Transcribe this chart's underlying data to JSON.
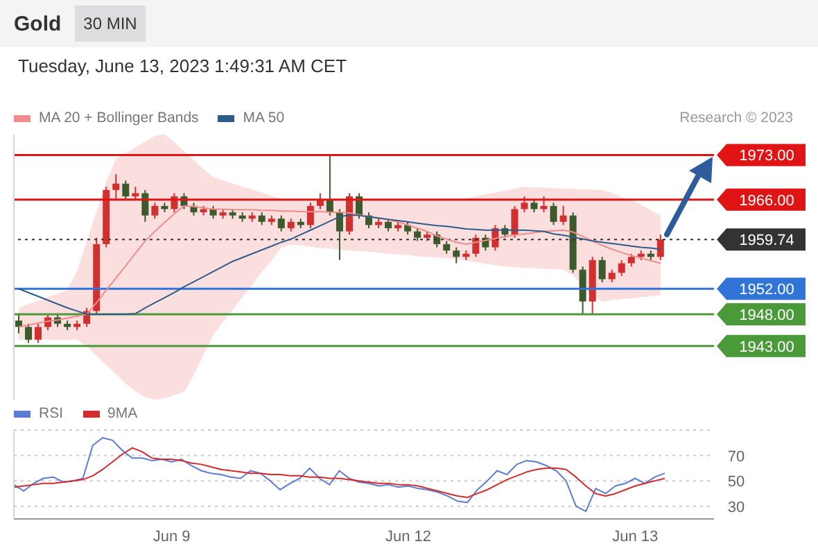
{
  "chart_data": [
    {
      "type": "candlestick",
      "title": "Gold",
      "subtitle": "30 MIN",
      "annotations": [
        "Tuesday, June 13, 2023 1:49:31 AM CET",
        "Research © 2023"
      ],
      "categories": [
        null,
        null,
        null,
        null,
        null,
        null,
        null,
        null,
        null,
        null,
        null,
        null,
        null,
        null,
        null,
        null,
        null,
        null,
        null,
        null,
        null,
        null,
        null,
        null,
        null,
        null,
        null,
        null,
        null,
        null,
        null,
        null,
        null,
        null,
        null,
        null,
        null,
        null,
        null,
        null,
        null,
        null,
        null,
        null,
        null,
        null,
        null,
        null,
        null,
        null,
        null,
        null,
        null,
        null,
        null,
        null,
        null,
        null,
        null,
        null,
        null,
        null,
        null,
        null,
        null,
        null,
        null
      ],
      "ohlc": [
        [
          1947,
          1948,
          1945,
          1946
        ],
        [
          1946,
          1946.5,
          1943.5,
          1944
        ],
        [
          1944,
          1946.5,
          1943.5,
          1946
        ],
        [
          1946,
          1948,
          1945.5,
          1947.5
        ],
        [
          1947.5,
          1948,
          1946,
          1946.5
        ],
        [
          1946.5,
          1947,
          1945.5,
          1946
        ],
        [
          1946,
          1947,
          1945.5,
          1946.5
        ],
        [
          1946.5,
          1949,
          1946,
          1948.5
        ],
        [
          1948.5,
          1960,
          1948,
          1959
        ],
        [
          1959,
          1968,
          1958.5,
          1967.5
        ],
        [
          1967.5,
          1970,
          1966,
          1968.5
        ],
        [
          1968.5,
          1969,
          1966,
          1966.5
        ],
        [
          1966.5,
          1968,
          1966,
          1967
        ],
        [
          1967,
          1967.5,
          1962.5,
          1963.5
        ],
        [
          1963.5,
          1965.5,
          1963,
          1965
        ],
        [
          1965,
          1965.5,
          1964,
          1964.5
        ],
        [
          1964.5,
          1967,
          1964,
          1966.5
        ],
        [
          1966.5,
          1967,
          1964.5,
          1965
        ],
        [
          1965,
          1965.5,
          1963.5,
          1964
        ],
        [
          1964,
          1965,
          1963.5,
          1964.5
        ],
        [
          1964.5,
          1965,
          1963,
          1963.5
        ],
        [
          1963.5,
          1964.5,
          1963,
          1964
        ],
        [
          1964,
          1964.5,
          1963,
          1963.5
        ],
        [
          1963.5,
          1964,
          1962.5,
          1963
        ],
        [
          1963,
          1964,
          1962.5,
          1963.5
        ],
        [
          1963.5,
          1964,
          1962,
          1962.5
        ],
        [
          1962.5,
          1963.5,
          1962,
          1963
        ],
        [
          1963,
          1963.5,
          1961,
          1961.5
        ],
        [
          1961.5,
          1963,
          1961,
          1962.5
        ],
        [
          1962.5,
          1963,
          1961.5,
          1962
        ],
        [
          1962,
          1965.5,
          1961.5,
          1965
        ],
        [
          1965,
          1967,
          1964.5,
          1966
        ],
        [
          1966,
          1973,
          1963.5,
          1964
        ],
        [
          1964,
          1964.5,
          1956.5,
          1961
        ],
        [
          1961,
          1967,
          1960.5,
          1966.5
        ],
        [
          1966.5,
          1967,
          1963,
          1963.5
        ],
        [
          1963.5,
          1964,
          1961.5,
          1962
        ],
        [
          1962,
          1963,
          1961.5,
          1962.5
        ],
        [
          1962.5,
          1963,
          1961,
          1961.5
        ],
        [
          1961.5,
          1962.5,
          1961,
          1962
        ],
        [
          1962,
          1962.5,
          1960.5,
          1961
        ],
        [
          1961,
          1961.5,
          1959.5,
          1960
        ],
        [
          1960,
          1961,
          1959.5,
          1960.5
        ],
        [
          1960.5,
          1961,
          1958.5,
          1959
        ],
        [
          1959,
          1959.5,
          1957.5,
          1958
        ],
        [
          1958,
          1958.5,
          1956,
          1957
        ],
        [
          1957,
          1958,
          1956.5,
          1957.5
        ],
        [
          1957.5,
          1960.5,
          1957,
          1960
        ],
        [
          1960,
          1960.5,
          1958,
          1958.5
        ],
        [
          1958.5,
          1962,
          1958,
          1961.5
        ],
        [
          1961.5,
          1962,
          1960,
          1960.5
        ],
        [
          1960.5,
          1965,
          1960,
          1964.5
        ],
        [
          1964.5,
          1966.5,
          1964,
          1965.5
        ],
        [
          1965.5,
          1966,
          1964,
          1964.5
        ],
        [
          1964.5,
          1966.5,
          1964,
          1965
        ],
        [
          1965,
          1965.5,
          1962,
          1962.5
        ],
        [
          1962.5,
          1965,
          1962,
          1963.5
        ],
        [
          1963.5,
          1964,
          1954.5,
          1955
        ],
        [
          1955,
          1955.5,
          1948,
          1950
        ],
        [
          1950,
          1957,
          1948,
          1956.5
        ],
        [
          1956.5,
          1957,
          1953,
          1953.5
        ],
        [
          1953.5,
          1955,
          1953,
          1954.5
        ],
        [
          1954.5,
          1956.5,
          1954,
          1956
        ],
        [
          1956,
          1957.5,
          1955.5,
          1957
        ],
        [
          1957,
          1958,
          1956.5,
          1957.5
        ],
        [
          1957.5,
          1958,
          1956.5,
          1957
        ],
        [
          1957,
          1960.5,
          1956.5,
          1959.74
        ]
      ],
      "series": [
        {
          "name": "MA 20 + Bollinger Bands",
          "type": "line",
          "color": "#f08c8c",
          "values": [
            1946,
            1946.3,
            1946.6,
            1946.9,
            1947.1,
            1947.4,
            1947.7,
            1948,
            1949.8,
            1951.8,
            1953.7,
            1955.6,
            1957.6,
            1959.5,
            1961,
            1962.4,
            1963.8,
            1965,
            1964.9,
            1964.7,
            1964.5,
            1964.5,
            1964.4,
            1964.4,
            1964.4,
            1964.3,
            1964.3,
            1964.2,
            1964.2,
            1964.1,
            1964.1,
            1964.1,
            1964,
            1964,
            1963.9,
            1963.6,
            1963.3,
            1963.1,
            1962.8,
            1962.5,
            1962,
            1961.5,
            1961,
            1960.3,
            1959.8,
            1959.3,
            1959,
            1959.3,
            1959.6,
            1959.9,
            1960.2,
            1960.4,
            1960.6,
            1960.8,
            1961,
            1961.1,
            1961.2,
            1960.9,
            1960.2,
            1959.5,
            1958.8,
            1958.2,
            1957.7,
            1957.2,
            1956.8,
            1956.4,
            1956
          ],
          "lower": [
            1944,
            1944,
            1944,
            1944,
            1944,
            1944,
            1944,
            1943,
            1941.5,
            1940,
            1938.6,
            1937.1,
            1935.9,
            1935,
            1934.6,
            1934.8,
            1935.3,
            1935.8,
            1938.5,
            1941.6,
            1944.7,
            1946.8,
            1948.7,
            1950.7,
            1952.6,
            1954.6,
            1956.5,
            1958.5,
            1958.9,
            1958.8,
            1958.6,
            1958.4,
            1958.3,
            1958.1,
            1958,
            1957.9,
            1957.8,
            1957.7,
            1957.5,
            1957.4,
            1957.3,
            1957.1,
            1957,
            1956.9,
            1956.8,
            1956.6,
            1956.4,
            1956.2,
            1955.9,
            1955.7,
            1955.5,
            1955.4,
            1955.3,
            1955.2,
            1955.1,
            1955.1,
            1955,
            1954.1,
            1952.5,
            1950.9,
            1950,
            1950.2,
            1950.4,
            1950.5,
            1950.7,
            1950.8,
            1951
          ],
          "upper": [
            1949,
            1949.6,
            1950.1,
            1950.7,
            1951.2,
            1951.8,
            1954.8,
            1959.5,
            1964.1,
            1968.8,
            1972.4,
            1973.3,
            1974.2,
            1975.1,
            1976,
            1976.2,
            1975,
            1973.6,
            1972.2,
            1970.8,
            1969.5,
            1969,
            1968.5,
            1968,
            1967.6,
            1967.1,
            1966.6,
            1966.1,
            1966,
            1966,
            1966,
            1966,
            1966,
            1966,
            1966,
            1966,
            1966,
            1966,
            1966,
            1966,
            1966,
            1966,
            1966,
            1966,
            1966,
            1966,
            1966.2,
            1966.5,
            1966.8,
            1967.1,
            1967.4,
            1967.7,
            1968,
            1967.9,
            1967.9,
            1967.8,
            1967.7,
            1967.7,
            1967.6,
            1967.6,
            1967.5,
            1967,
            1966.4,
            1965.9,
            1965.2,
            1964.3,
            1963.5
          ]
        },
        {
          "name": "MA 50",
          "type": "line",
          "color": "#2e5c8a",
          "values": [
            1952,
            1951.4,
            1950.8,
            1950.2,
            1949.6,
            1949,
            1948.5,
            1948,
            1948,
            1948,
            1948,
            1948,
            1948.1,
            1949,
            1949.8,
            1950.6,
            1951.4,
            1952.3,
            1953.1,
            1953.9,
            1954.7,
            1955.5,
            1956.3,
            1956.9,
            1957.5,
            1958.1,
            1958.7,
            1959.3,
            1959.8,
            1960.5,
            1961.2,
            1961.9,
            1962.6,
            1963.3,
            1963.6,
            1963.5,
            1963.3,
            1963.1,
            1962.9,
            1962.7,
            1962.5,
            1962.3,
            1962.1,
            1961.9,
            1961.8,
            1961.6,
            1961.4,
            1961.3,
            1961.2,
            1961.2,
            1961.2,
            1961.2,
            1961.2,
            1961.1,
            1961,
            1960.6,
            1960.4,
            1960.1,
            1959.8,
            1959.5,
            1959.3,
            1959.1,
            1958.9,
            1958.7,
            1958.5,
            1958.4,
            1958.2
          ]
        }
      ],
      "ylim": [
        1934.6,
        1976.2
      ],
      "yticks": [
        {
          "value": 1973,
          "label": "1973.00"
        },
        {
          "value": 1966,
          "label": "1966.00"
        },
        {
          "value": 1959.74,
          "label": "1959.74"
        },
        {
          "value": 1952,
          "label": "1952.00"
        },
        {
          "value": 1948,
          "label": "1948.00"
        },
        {
          "value": 1943,
          "label": "1943.00"
        }
      ],
      "ref_lines": [
        {
          "axis": "y",
          "value": 1973,
          "color": "#e01414"
        },
        {
          "axis": "y",
          "value": 1966,
          "color": "#e01414"
        },
        {
          "axis": "y",
          "value": 1959.74,
          "color": "#333333",
          "line_style": "dotted"
        },
        {
          "axis": "y",
          "value": 1952,
          "color": "#2f74d6"
        },
        {
          "axis": "y",
          "value": 1948,
          "color": "#4a9a3a"
        },
        {
          "axis": "y",
          "value": 1943,
          "color": "#4a9a3a"
        }
      ],
      "legend": "top left",
      "tick_labels": "y",
      "marker": "none",
      "grid": false
    },
    {
      "type": "line",
      "categories": [
        null,
        null,
        null,
        null,
        null,
        null,
        null,
        null,
        null,
        null,
        null,
        null,
        null,
        null,
        null,
        null,
        "Jun 9",
        null,
        null,
        null,
        null,
        null,
        null,
        null,
        null,
        null,
        null,
        null,
        null,
        null,
        null,
        null,
        null,
        null,
        null,
        null,
        null,
        null,
        null,
        null,
        "Jun 12",
        null,
        null,
        null,
        null,
        null,
        null,
        null,
        null,
        null,
        null,
        null,
        null,
        null,
        null,
        null,
        null,
        null,
        null,
        null,
        null,
        null,
        null,
        "Jun 13",
        null,
        null,
        null
      ],
      "series": [
        {
          "name": "RSI",
          "color": "#5b7bd5",
          "values": [
            47,
            42,
            48,
            52,
            53,
            49,
            50,
            52,
            78,
            84,
            82,
            74,
            68,
            68,
            66,
            67,
            65,
            67,
            62,
            58,
            56,
            55,
            53,
            52,
            58,
            56,
            50,
            43,
            48,
            52,
            60,
            52,
            47,
            58,
            52,
            49,
            48,
            46,
            47,
            45,
            46,
            44,
            43,
            41,
            38,
            34,
            33,
            43,
            50,
            58,
            55,
            63,
            66,
            65,
            62,
            58,
            50,
            30,
            26,
            44,
            40,
            46,
            48,
            52,
            48,
            53,
            56
          ]
        },
        {
          "name": "9MA",
          "color": "#d42a2a",
          "values": [
            45,
            46,
            47,
            48,
            48,
            49,
            50,
            51,
            54,
            59,
            65,
            71,
            76,
            73,
            68,
            67,
            67,
            66,
            64,
            63,
            61,
            59,
            58,
            57,
            56,
            56,
            55,
            55,
            54,
            54,
            53,
            53,
            52,
            52,
            51,
            50,
            49,
            48,
            48,
            47,
            47,
            46,
            44,
            42,
            40,
            38,
            37,
            40,
            43,
            47,
            51,
            54,
            57,
            59,
            60,
            60,
            59,
            53,
            46,
            40,
            38,
            40,
            43,
            46,
            48,
            50,
            52
          ]
        }
      ],
      "ylim": [
        20,
        90
      ],
      "yticks": [
        30,
        50,
        70
      ],
      "grid": "y",
      "legend": "top left",
      "marker": "none"
    }
  ]
}
